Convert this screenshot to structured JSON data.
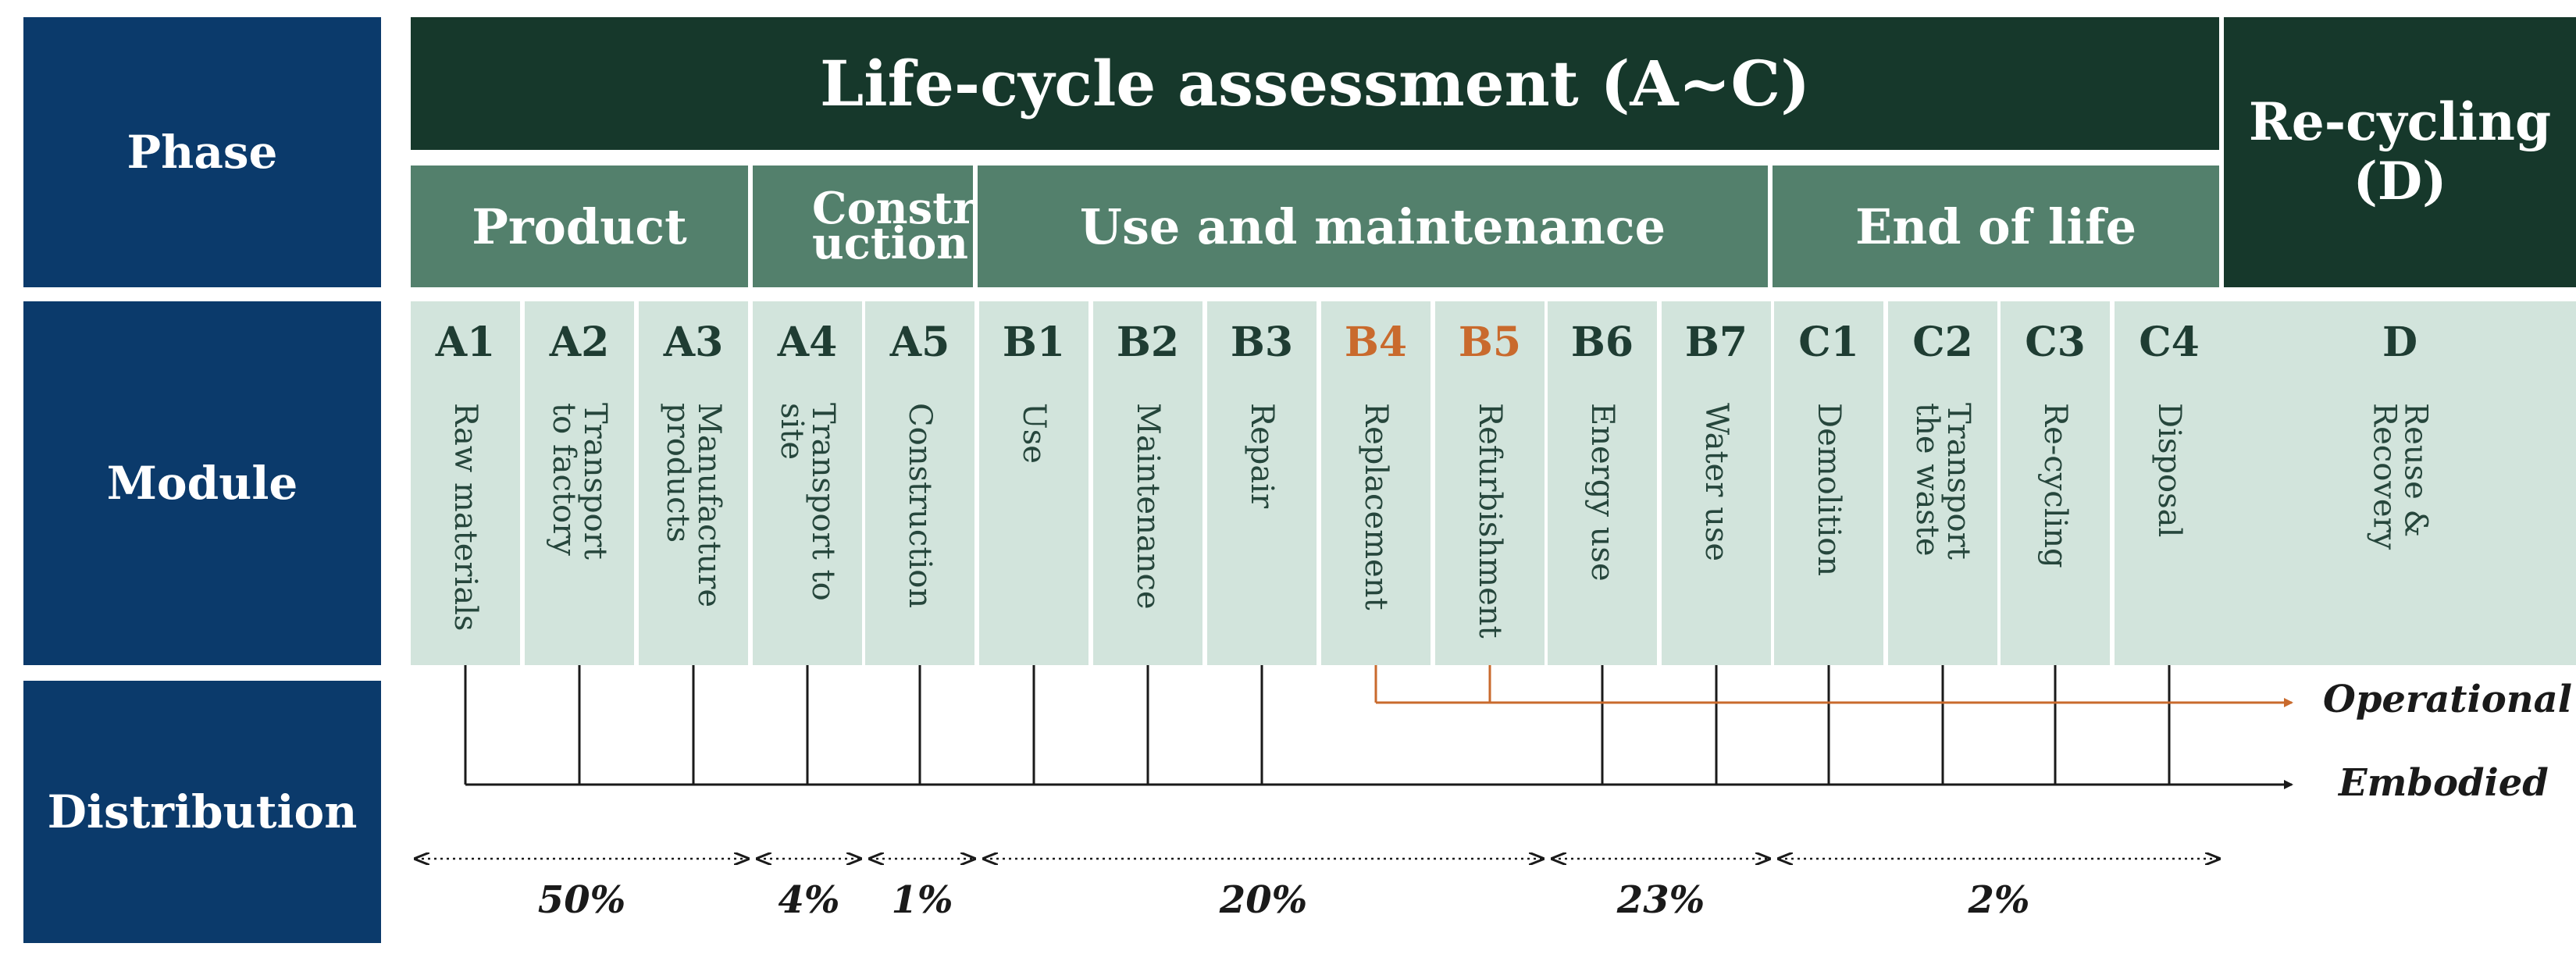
{
  "row_headers": {
    "phase": "Phase",
    "module": "Module",
    "distribution": "Distribution"
  },
  "lca_title": "Life-cycle assessment (A~C)",
  "recycling_title": "Re-cycling (D)",
  "stages": {
    "product": "Product",
    "construction": "Constr uction",
    "use": "Use and maintenance",
    "end_of_life": "End of  life"
  },
  "modules": [
    {
      "code": "A1",
      "name": "Raw materials"
    },
    {
      "code": "A2",
      "name": "Transport to factory"
    },
    {
      "code": "A3",
      "name": "Manufacture products"
    },
    {
      "code": "A4",
      "name": "Transport to site"
    },
    {
      "code": "A5",
      "name": "Construction"
    },
    {
      "code": "B1",
      "name": "Use"
    },
    {
      "code": "B2",
      "name": "Maintenance"
    },
    {
      "code": "B3",
      "name": "Repair"
    },
    {
      "code": "B4",
      "name": "Replacement"
    },
    {
      "code": "B5",
      "name": "Refurbishment"
    },
    {
      "code": "B6",
      "name": "Energy use"
    },
    {
      "code": "B7",
      "name": "Water use"
    },
    {
      "code": "C1",
      "name": "Demolition"
    },
    {
      "code": "C2",
      "name": "Transport the waste"
    },
    {
      "code": "C3",
      "name": "Re-cycling"
    },
    {
      "code": "C4",
      "name": "Disposal"
    },
    {
      "code": "D",
      "name": "Reuse & Recovery"
    }
  ],
  "distribution": {
    "operational": "Operational",
    "embodied": "Embodied",
    "percentages": [
      "50%",
      "4%",
      "1%",
      "20%",
      "23%",
      "2%"
    ]
  },
  "colors": {
    "highlight": "#c96a2d",
    "navy": "#0b3a6b",
    "dark_green": "#16382b",
    "mid_green": "#53806c",
    "light_green": "#d2e4dc"
  }
}
